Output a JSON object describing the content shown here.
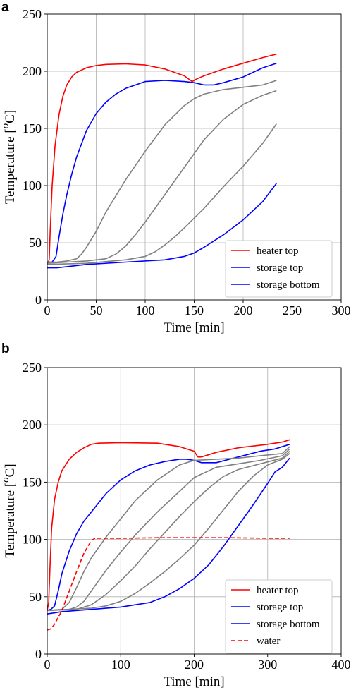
{
  "chart_data": [
    {
      "type": "line",
      "panel_label": "a",
      "xlabel": "Time [min]",
      "ylabel": "Temperature [",
      "ylabel_unit": "oC",
      "ylabel_close": "]",
      "xlim": [
        0,
        300
      ],
      "ylim": [
        0,
        250
      ],
      "xticks": [
        0,
        50,
        100,
        150,
        200,
        250,
        300
      ],
      "yticks": [
        0,
        50,
        100,
        150,
        200,
        250
      ],
      "grid": true,
      "legend_position": "lower right",
      "legend": [
        {
          "label": "heater top",
          "color": "#ff0000",
          "dash": "solid"
        },
        {
          "label": "storage top",
          "color": "#0000ff",
          "dash": "solid"
        },
        {
          "label": "storage bottom",
          "color": "#0000ff",
          "dash": "solid"
        }
      ],
      "series": [
        {
          "color": "#ff0000",
          "dash": "solid",
          "x": [
            0,
            2,
            3,
            5,
            8,
            12,
            16,
            20,
            25,
            30,
            40,
            50,
            60,
            80,
            100,
            120,
            140,
            148,
            152,
            160,
            180,
            200,
            220,
            234
          ],
          "y": [
            31,
            35,
            60,
            100,
            135,
            162,
            178,
            188,
            195,
            199,
            203,
            205,
            206,
            206.5,
            205.5,
            202,
            196,
            191,
            193,
            196,
            202,
            207,
            212,
            215
          ]
        },
        {
          "color": "#0000ff",
          "dash": "solid",
          "x": [
            0,
            5,
            9,
            12,
            16,
            20,
            25,
            30,
            40,
            50,
            60,
            70,
            80,
            100,
            120,
            140,
            150,
            160,
            170,
            180,
            200,
            220,
            234
          ],
          "y": [
            33,
            33,
            38,
            55,
            75,
            92,
            110,
            125,
            148,
            163,
            173,
            180,
            185,
            191,
            192,
            191,
            190,
            188,
            188,
            190,
            195,
            203,
            207
          ]
        },
        {
          "color": "#808080",
          "dash": "solid",
          "x": [
            0,
            10,
            20,
            30,
            35,
            40,
            50,
            60,
            80,
            100,
            120,
            140,
            150,
            160,
            180,
            200,
            220,
            234
          ],
          "y": [
            33,
            33,
            34,
            36,
            40,
            46,
            60,
            77,
            105,
            130,
            153,
            170,
            176,
            180,
            184,
            186,
            188,
            192
          ]
        },
        {
          "color": "#808080",
          "dash": "solid",
          "x": [
            0,
            20,
            40,
            60,
            70,
            80,
            90,
            100,
            120,
            140,
            160,
            180,
            200,
            220,
            234
          ],
          "y": [
            32,
            33,
            34,
            36,
            40,
            47,
            57,
            68,
            92,
            116,
            140,
            158,
            171,
            179,
            183
          ]
        },
        {
          "color": "#808080",
          "dash": "solid",
          "x": [
            0,
            40,
            80,
            100,
            110,
            120,
            130,
            140,
            160,
            180,
            200,
            220,
            234
          ],
          "y": [
            31,
            32,
            35,
            38,
            42,
            48,
            55,
            63,
            80,
            99,
            117,
            137,
            154
          ]
        },
        {
          "color": "#0000ff",
          "dash": "solid",
          "x": [
            0,
            10,
            40,
            80,
            120,
            140,
            150,
            160,
            180,
            200,
            220,
            234
          ],
          "y": [
            28,
            28,
            31,
            33,
            35,
            38,
            41,
            46,
            57,
            70,
            86,
            102
          ]
        }
      ]
    },
    {
      "type": "line",
      "panel_label": "b",
      "xlabel": "Time [min]",
      "ylabel": "Temperature [",
      "ylabel_unit": "oC",
      "ylabel_close": "]",
      "xlim": [
        0,
        400
      ],
      "ylim": [
        0,
        250
      ],
      "xticks": [
        0,
        100,
        200,
        300,
        400
      ],
      "yticks": [
        0,
        50,
        100,
        150,
        200,
        250
      ],
      "grid": true,
      "legend_position": "lower right",
      "legend": [
        {
          "label": "heater top",
          "color": "#ff0000",
          "dash": "solid"
        },
        {
          "label": "storage top",
          "color": "#0000ff",
          "dash": "solid"
        },
        {
          "label": "storage bottom",
          "color": "#0000ff",
          "dash": "solid"
        },
        {
          "label": "water",
          "color": "#ff0000",
          "dash": "dashed"
        }
      ],
      "series": [
        {
          "color": "#ff0000",
          "dash": "solid",
          "x": [
            0,
            2,
            4,
            6,
            10,
            15,
            20,
            30,
            40,
            50,
            60,
            70,
            100,
            150,
            180,
            200,
            205,
            210,
            230,
            260,
            300,
            320,
            330
          ],
          "y": [
            38,
            45,
            80,
            110,
            135,
            150,
            160,
            170,
            176,
            180,
            183,
            184,
            184.5,
            184,
            181,
            177,
            172,
            172,
            176,
            180,
            183,
            185,
            187
          ]
        },
        {
          "color": "#0000ff",
          "dash": "solid",
          "x": [
            0,
            5,
            10,
            15,
            20,
            30,
            40,
            50,
            60,
            80,
            100,
            120,
            140,
            160,
            180,
            190,
            200,
            210,
            230,
            260,
            290,
            310,
            330
          ],
          "y": [
            38,
            39,
            42,
            55,
            70,
            90,
            105,
            116,
            124,
            140,
            152,
            160,
            165,
            168,
            170,
            170,
            169,
            167,
            167,
            172,
            177,
            179,
            183
          ]
        },
        {
          "color": "#808080",
          "dash": "solid",
          "x": [
            0,
            20,
            30,
            40,
            50,
            60,
            80,
            100,
            120,
            150,
            180,
            200,
            230,
            260,
            290,
            320,
            330
          ],
          "y": [
            38,
            39,
            45,
            58,
            72,
            84,
            102,
            118,
            134,
            152,
            165,
            169,
            170,
            171,
            173,
            175,
            181
          ]
        },
        {
          "color": "#808080",
          "dash": "solid",
          "x": [
            0,
            30,
            40,
            50,
            60,
            80,
            100,
            120,
            150,
            180,
            200,
            230,
            260,
            290,
            320,
            330
          ],
          "y": [
            38,
            39,
            41,
            46,
            55,
            73,
            89,
            104,
            124,
            142,
            154,
            163,
            166,
            169,
            173,
            179
          ]
        },
        {
          "color": "#808080",
          "dash": "solid",
          "x": [
            0,
            40,
            60,
            80,
            100,
            120,
            140,
            160,
            180,
            200,
            220,
            240,
            260,
            290,
            320,
            330
          ],
          "y": [
            38,
            39,
            43,
            52,
            64,
            77,
            92,
            106,
            120,
            133,
            145,
            155,
            161,
            166,
            171,
            177
          ]
        },
        {
          "color": "#808080",
          "dash": "solid",
          "x": [
            0,
            60,
            80,
            100,
            120,
            140,
            160,
            180,
            200,
            220,
            240,
            260,
            280,
            300,
            320,
            330
          ],
          "y": [
            38,
            40,
            42,
            46,
            53,
            62,
            72,
            83,
            95,
            110,
            126,
            142,
            155,
            165,
            170,
            175
          ]
        },
        {
          "color": "#0000ff",
          "dash": "solid",
          "x": [
            0,
            20,
            60,
            100,
            140,
            160,
            180,
            200,
            220,
            240,
            260,
            280,
            300,
            310,
            320,
            330
          ],
          "y": [
            35,
            37,
            39,
            41,
            45,
            50,
            57,
            66,
            78,
            94,
            112,
            130,
            149,
            159,
            163,
            171
          ]
        },
        {
          "color": "#ff0000",
          "dash": "dashed",
          "x": [
            0,
            5,
            10,
            15,
            20,
            30,
            40,
            50,
            60,
            65,
            100,
            150,
            200,
            250,
            300,
            330
          ],
          "y": [
            21,
            22,
            26,
            32,
            38,
            55,
            72,
            88,
            99,
            101,
            101,
            101.5,
            101.5,
            101.5,
            101,
            101
          ]
        }
      ]
    }
  ]
}
